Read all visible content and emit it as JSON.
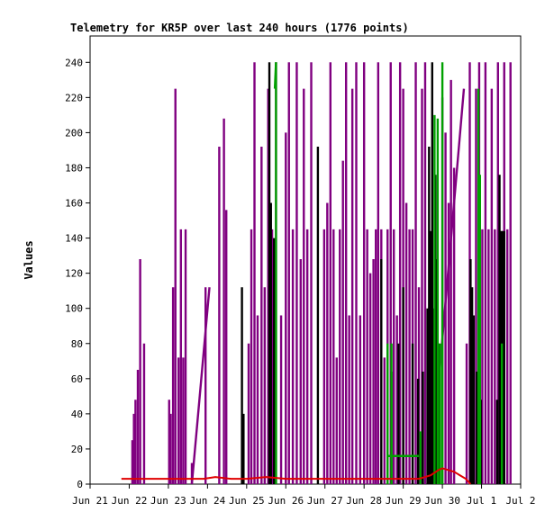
{
  "chart_data": {
    "type": "line",
    "title": "Telemetry for KR5P over last 240 hours (1776 points)",
    "xlabel": "",
    "ylabel": "Values",
    "xlim": [
      0,
      11
    ],
    "ylim": [
      0,
      255
    ],
    "x_ticks": [
      "Jun 21",
      "Jun 22",
      "Jun 23",
      "Jun 24",
      "Jun 25",
      "Jun 26",
      "Jun 27",
      "Jun 28",
      "Jun 29",
      "Jun 30",
      "Jul 1",
      "Jul 2"
    ],
    "y_ticks": [
      0,
      20,
      40,
      60,
      80,
      100,
      120,
      140,
      160,
      180,
      200,
      220,
      240
    ],
    "grid": false,
    "legend": "none",
    "series": [
      {
        "color": "#800080",
        "spikes": [
          [
            1.08,
            25
          ],
          [
            1.12,
            40
          ],
          [
            1.16,
            48
          ],
          [
            1.22,
            65
          ],
          [
            1.28,
            128
          ],
          [
            1.38,
            80
          ],
          [
            2.02,
            48
          ],
          [
            2.06,
            40
          ],
          [
            2.12,
            112
          ],
          [
            2.18,
            225
          ],
          [
            2.26,
            72
          ],
          [
            2.32,
            145
          ],
          [
            2.38,
            72
          ],
          [
            2.44,
            145
          ],
          [
            2.6,
            12
          ],
          [
            2.95,
            112
          ],
          [
            3.3,
            192
          ],
          [
            3.42,
            208
          ],
          [
            3.48,
            156
          ],
          [
            4.05,
            80
          ],
          [
            4.12,
            145
          ],
          [
            4.2,
            240
          ],
          [
            4.28,
            96
          ],
          [
            4.38,
            192
          ],
          [
            4.46,
            112
          ],
          [
            4.55,
            225
          ],
          [
            4.65,
            145
          ],
          [
            4.75,
            240
          ],
          [
            4.88,
            96
          ],
          [
            5.0,
            200
          ],
          [
            5.08,
            240
          ],
          [
            5.18,
            145
          ],
          [
            5.28,
            240
          ],
          [
            5.38,
            128
          ],
          [
            5.46,
            225
          ],
          [
            5.55,
            145
          ],
          [
            5.65,
            240
          ],
          [
            5.98,
            145
          ],
          [
            6.06,
            160
          ],
          [
            6.14,
            240
          ],
          [
            6.22,
            145
          ],
          [
            6.3,
            72
          ],
          [
            6.38,
            145
          ],
          [
            6.46,
            184
          ],
          [
            6.54,
            240
          ],
          [
            6.62,
            96
          ],
          [
            6.7,
            225
          ],
          [
            6.8,
            240
          ],
          [
            6.9,
            96
          ],
          [
            7.0,
            240
          ],
          [
            7.08,
            145
          ],
          [
            7.16,
            120
          ],
          [
            7.24,
            128
          ],
          [
            7.3,
            145
          ],
          [
            7.36,
            240
          ],
          [
            7.44,
            145
          ],
          [
            7.52,
            72
          ],
          [
            7.6,
            145
          ],
          [
            7.68,
            240
          ],
          [
            7.76,
            145
          ],
          [
            7.84,
            96
          ],
          [
            7.92,
            240
          ],
          [
            8.0,
            225
          ],
          [
            8.08,
            160
          ],
          [
            8.16,
            145
          ],
          [
            8.24,
            145
          ],
          [
            8.32,
            240
          ],
          [
            8.4,
            112
          ],
          [
            8.48,
            225
          ],
          [
            8.56,
            240
          ],
          [
            9.0,
            220
          ],
          [
            9.08,
            200
          ],
          [
            9.16,
            160
          ],
          [
            9.22,
            230
          ],
          [
            9.3,
            180
          ],
          [
            9.62,
            80
          ],
          [
            9.7,
            240
          ],
          [
            9.78,
            60
          ],
          [
            9.86,
            225
          ],
          [
            9.94,
            240
          ],
          [
            10.02,
            145
          ],
          [
            10.1,
            240
          ],
          [
            10.18,
            145
          ],
          [
            10.26,
            225
          ],
          [
            10.34,
            145
          ],
          [
            10.42,
            240
          ],
          [
            10.5,
            96
          ],
          [
            10.58,
            240
          ],
          [
            10.66,
            145
          ],
          [
            10.74,
            240
          ]
        ],
        "ramps": [
          [
            [
              2.6,
              0
            ],
            [
              3.05,
              112
            ]
          ],
          [
            [
              8.68,
              0
            ],
            [
              9.55,
              225
            ]
          ]
        ]
      },
      {
        "color": "#000000",
        "spikes": [
          [
            3.88,
            112
          ],
          [
            3.92,
            40
          ],
          [
            4.58,
            240
          ],
          [
            4.62,
            160
          ],
          [
            4.7,
            140
          ],
          [
            5.82,
            192
          ],
          [
            7.44,
            128
          ],
          [
            7.7,
            64
          ],
          [
            7.88,
            80
          ],
          [
            8.0,
            112
          ],
          [
            8.24,
            80
          ],
          [
            8.38,
            60
          ],
          [
            8.5,
            64
          ],
          [
            8.62,
            100
          ],
          [
            8.66,
            192
          ],
          [
            8.7,
            144
          ],
          [
            8.74,
            240
          ],
          [
            8.78,
            100
          ],
          [
            8.82,
            176
          ],
          [
            8.86,
            128
          ],
          [
            8.9,
            80
          ],
          [
            9.72,
            128
          ],
          [
            9.76,
            112
          ],
          [
            9.8,
            96
          ],
          [
            9.88,
            64
          ],
          [
            9.92,
            40
          ],
          [
            9.98,
            48
          ],
          [
            10.4,
            48
          ],
          [
            10.46,
            176
          ],
          [
            10.5,
            144
          ],
          [
            10.54,
            144
          ],
          [
            10.58,
            144
          ]
        ],
        "ramps": []
      },
      {
        "color": "#00a000",
        "spikes": [
          [
            4.75,
            240
          ],
          [
            7.6,
            80
          ],
          [
            7.7,
            80
          ],
          [
            8.44,
            30
          ],
          [
            8.8,
            210
          ],
          [
            8.88,
            208
          ],
          [
            8.94,
            80
          ],
          [
            9.0,
            240
          ],
          [
            9.92,
            225
          ],
          [
            9.96,
            176
          ],
          [
            10.52,
            80
          ]
        ],
        "ramps": [
          [
            [
              4.72,
              225
            ],
            [
              4.75,
              240
            ]
          ],
          [
            [
              7.6,
              16
            ],
            [
              8.4,
              16
            ]
          ]
        ]
      },
      {
        "color": "#e00000",
        "x": [
          0.8,
          1.2,
          1.6,
          2.0,
          2.5,
          2.9,
          3.2,
          3.6,
          4.0,
          4.5,
          5.0,
          5.5,
          6.0,
          6.5,
          7.0,
          7.5,
          8.0,
          8.4,
          8.7,
          8.9,
          9.0,
          9.3,
          9.6,
          9.72
        ],
        "y": [
          3,
          3,
          3,
          3,
          3,
          3,
          4,
          3,
          3,
          4,
          3,
          3,
          3,
          3,
          3,
          3,
          3,
          3,
          5,
          8,
          9,
          7,
          3,
          0
        ]
      }
    ]
  }
}
